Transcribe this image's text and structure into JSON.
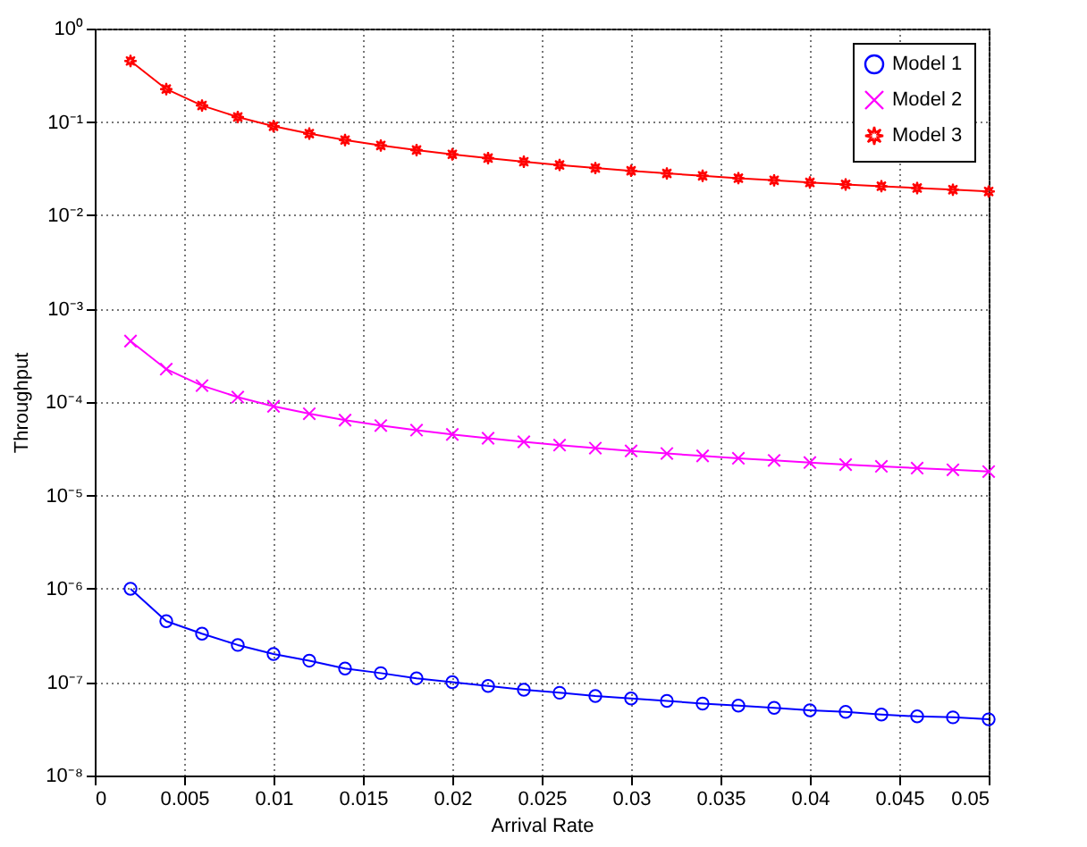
{
  "chart_data": {
    "type": "line",
    "xlabel": "Arrival Rate",
    "ylabel": "Throughput",
    "x": [
      0.002,
      0.004,
      0.006,
      0.008,
      0.01,
      0.012,
      0.014,
      0.016,
      0.018,
      0.02,
      0.022,
      0.024,
      0.026,
      0.028,
      0.03,
      0.032,
      0.034,
      0.036,
      0.038,
      0.04,
      0.042,
      0.044,
      0.046,
      0.048,
      0.05
    ],
    "series": [
      {
        "name": "Model 1",
        "color": "#0000ff",
        "marker": "circle",
        "values": [
          1e-06,
          4.5e-07,
          3.3e-07,
          2.5e-07,
          2e-07,
          1.7e-07,
          1.4e-07,
          1.25e-07,
          1.1e-07,
          1e-07,
          9.1e-08,
          8.3e-08,
          7.7e-08,
          7.1e-08,
          6.7e-08,
          6.3e-08,
          5.9e-08,
          5.6e-08,
          5.3e-08,
          5e-08,
          4.8e-08,
          4.5e-08,
          4.3e-08,
          4.2e-08,
          4e-08
        ]
      },
      {
        "name": "Model 2",
        "color": "#ff00ff",
        "marker": "cross",
        "values": [
          0.00045,
          0.000225,
          0.00015,
          0.000113,
          9e-05,
          7.5e-05,
          6.4e-05,
          5.6e-05,
          5e-05,
          4.5e-05,
          4.1e-05,
          3.75e-05,
          3.46e-05,
          3.21e-05,
          3e-05,
          2.81e-05,
          2.65e-05,
          2.5e-05,
          2.37e-05,
          2.25e-05,
          2.14e-05,
          2.05e-05,
          1.96e-05,
          1.88e-05,
          1.8e-05
        ]
      },
      {
        "name": "Model 3",
        "color": "#ff0000",
        "marker": "star",
        "values": [
          0.45,
          0.225,
          0.15,
          0.113,
          0.09,
          0.075,
          0.064,
          0.056,
          0.05,
          0.045,
          0.041,
          0.0375,
          0.0346,
          0.0321,
          0.03,
          0.0281,
          0.0265,
          0.025,
          0.0237,
          0.0225,
          0.0214,
          0.0205,
          0.0196,
          0.0188,
          0.018
        ]
      }
    ],
    "log": "y",
    "xlim": [
      0,
      0.05
    ],
    "xticks": [
      0,
      0.005,
      0.01,
      0.015,
      0.02,
      0.025,
      0.03,
      0.035,
      0.04,
      0.045,
      0.05
    ],
    "ylim": [
      1e-08,
      1
    ],
    "yticks": [
      {
        "value": 1e-08,
        "label": "10⁻⁸"
      },
      {
        "value": 1e-07,
        "label": "10⁻⁷"
      },
      {
        "value": 1e-06,
        "label": "10⁻⁶"
      },
      {
        "value": 1e-05,
        "label": "10⁻⁵"
      },
      {
        "value": 0.0001,
        "label": "10⁻⁴"
      },
      {
        "value": 0.001,
        "label": "10⁻³"
      },
      {
        "value": 0.01,
        "label": "10⁻²"
      },
      {
        "value": 0.1,
        "label": "10⁻¹"
      },
      {
        "value": 1,
        "label": "10⁰"
      }
    ],
    "grid": true,
    "legend": "top right",
    "line_style": "solid"
  }
}
